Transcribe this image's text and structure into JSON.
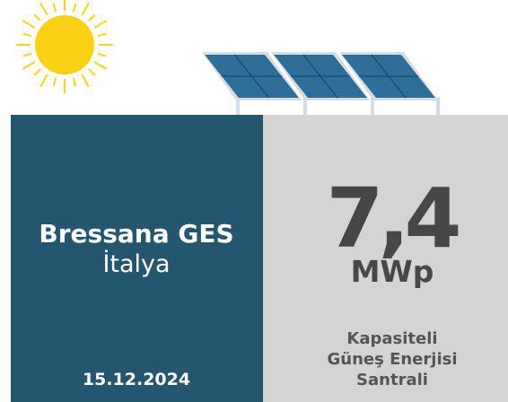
{
  "project": {
    "name": "Bressana GES",
    "country": "İtalya",
    "date": "15.12.2024"
  },
  "capacity": {
    "value": "7,4",
    "unit": "MWp",
    "description": [
      "Kapasiteli",
      "Güneş Enerjisi",
      "Santrali"
    ]
  }
}
